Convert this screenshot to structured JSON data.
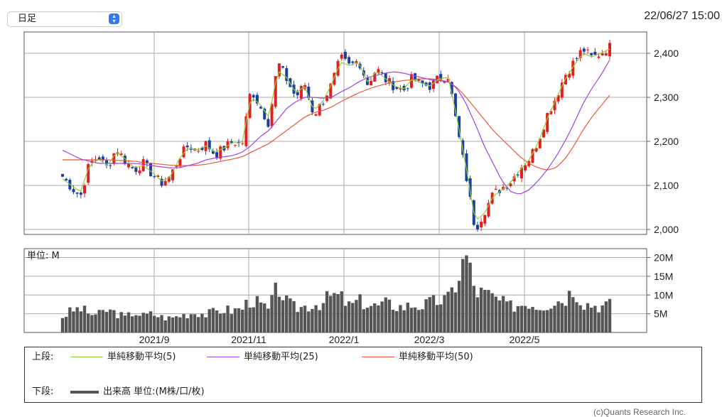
{
  "period_select": {
    "value": "日足"
  },
  "timestamp": "22/06/27 15:00",
  "chart_data": [
    {
      "type": "candlestick",
      "x_axis": [
        "2021/9",
        "2021/11",
        "2022/1",
        "2022/3",
        "2022/5"
      ],
      "ylim": [
        2000,
        2440
      ],
      "yticks": [
        "2,400",
        "2,300",
        "2,200",
        "2,100",
        "2,000"
      ],
      "grid": true,
      "series": [
        {
          "name": "単純移動平均(5)",
          "color": "#8ccf3a"
        },
        {
          "name": "単純移動平均(25)",
          "color": "#a040e8"
        },
        {
          "name": "単純移動平均(50)",
          "color": "#ee5533"
        }
      ],
      "candle_colors": {
        "up": "#e02020",
        "down": "#1a3f9f"
      },
      "price_keypoints": [
        2120,
        2095,
        2075,
        2150,
        2165,
        2140,
        2185,
        2155,
        2135,
        2150,
        2125,
        2105,
        2120,
        2165,
        2190,
        2180,
        2195,
        2170,
        2185,
        2200,
        2190,
        2320,
        2280,
        2240,
        2380,
        2340,
        2300,
        2330,
        2260,
        2290,
        2330,
        2390,
        2370,
        2385,
        2330,
        2365,
        2340,
        2325,
        2315,
        2345,
        2330,
        2325,
        2345,
        2350,
        2230,
        2120,
        2000,
        2040,
        2080,
        2095,
        2110,
        2140,
        2160,
        2200,
        2260,
        2300,
        2350,
        2380,
        2410,
        2390,
        2400,
        2415
      ],
      "ma5_keypoints": [
        2115,
        2100,
        2085,
        2145,
        2160,
        2145,
        2175,
        2160,
        2140,
        2145,
        2130,
        2110,
        2118,
        2160,
        2185,
        2180,
        2190,
        2175,
        2185,
        2198,
        2195,
        2300,
        2285,
        2255,
        2360,
        2345,
        2310,
        2325,
        2270,
        2290,
        2330,
        2380,
        2372,
        2380,
        2335,
        2360,
        2342,
        2326,
        2318,
        2342,
        2332,
        2326,
        2342,
        2345,
        2250,
        2140,
        2020,
        2035,
        2075,
        2090,
        2108,
        2135,
        2158,
        2195,
        2250,
        2295,
        2340,
        2372,
        2400,
        2392,
        2400,
        2410
      ],
      "ma25_keypoints": [
        2180,
        2170,
        2160,
        2155,
        2150,
        2150,
        2150,
        2150,
        2150,
        2148,
        2145,
        2142,
        2140,
        2140,
        2145,
        2150,
        2158,
        2162,
        2165,
        2168,
        2175,
        2190,
        2210,
        2225,
        2250,
        2275,
        2290,
        2300,
        2300,
        2298,
        2300,
        2312,
        2322,
        2335,
        2345,
        2350,
        2355,
        2358,
        2355,
        2350,
        2345,
        2340,
        2338,
        2335,
        2320,
        2285,
        2240,
        2190,
        2150,
        2110,
        2085,
        2080,
        2090,
        2110,
        2135,
        2165,
        2200,
        2240,
        2285,
        2320,
        2350,
        2385
      ],
      "ma50_keypoints": [
        2158,
        2158,
        2158,
        2158,
        2158,
        2158,
        2157,
        2156,
        2155,
        2152,
        2150,
        2148,
        2146,
        2145,
        2145,
        2146,
        2148,
        2152,
        2156,
        2160,
        2165,
        2175,
        2185,
        2195,
        2210,
        2225,
        2240,
        2255,
        2265,
        2270,
        2278,
        2290,
        2300,
        2310,
        2318,
        2325,
        2330,
        2335,
        2338,
        2340,
        2342,
        2342,
        2340,
        2335,
        2322,
        2300,
        2275,
        2250,
        2225,
        2205,
        2185,
        2165,
        2150,
        2140,
        2135,
        2140,
        2160,
        2190,
        2225,
        2255,
        2280,
        2305
      ]
    },
    {
      "type": "bar",
      "unit_label": "単位: M",
      "ylim": [
        0,
        22
      ],
      "yticks": [
        "20M",
        "15M",
        "10M",
        "5M"
      ],
      "bar_color": "#555555",
      "volume_keypoints": [
        4.2,
        5.8,
        6.5,
        5.0,
        4.8,
        6.0,
        5.2,
        4.0,
        5.5,
        4.5,
        5.0,
        4.2,
        3.8,
        4.5,
        5.0,
        5.5,
        4.8,
        5.6,
        6.2,
        5.8,
        6.5,
        9.0,
        7.5,
        6.0,
        12.5,
        8.0,
        6.5,
        7.0,
        7.5,
        8.0,
        10.0,
        9.5,
        7.0,
        8.5,
        7.5,
        7.0,
        7.8,
        7.2,
        6.8,
        7.5,
        7.0,
        8.0,
        8.5,
        9.0,
        14.0,
        21.0,
        11.0,
        10.5,
        9.5,
        8.0,
        7.0,
        7.5,
        8.0,
        7.0,
        7.5,
        8.5,
        9.0,
        12.0,
        8.0,
        7.5,
        7.0,
        7.5
      ]
    }
  ],
  "legend": {
    "upper_label": "上段:",
    "lower_label": "下段:",
    "items": [
      {
        "name": "単純移動平均(5)",
        "color": "#8ccf3a"
      },
      {
        "name": "単純移動平均(25)",
        "color": "#a040e8"
      },
      {
        "name": "単純移動平均(50)",
        "color": "#ee5533"
      }
    ],
    "volume_item": {
      "name": "出来高 単位:(M株/口/枚)",
      "color": "#555555"
    }
  },
  "credit": "(c)Quants Research Inc."
}
